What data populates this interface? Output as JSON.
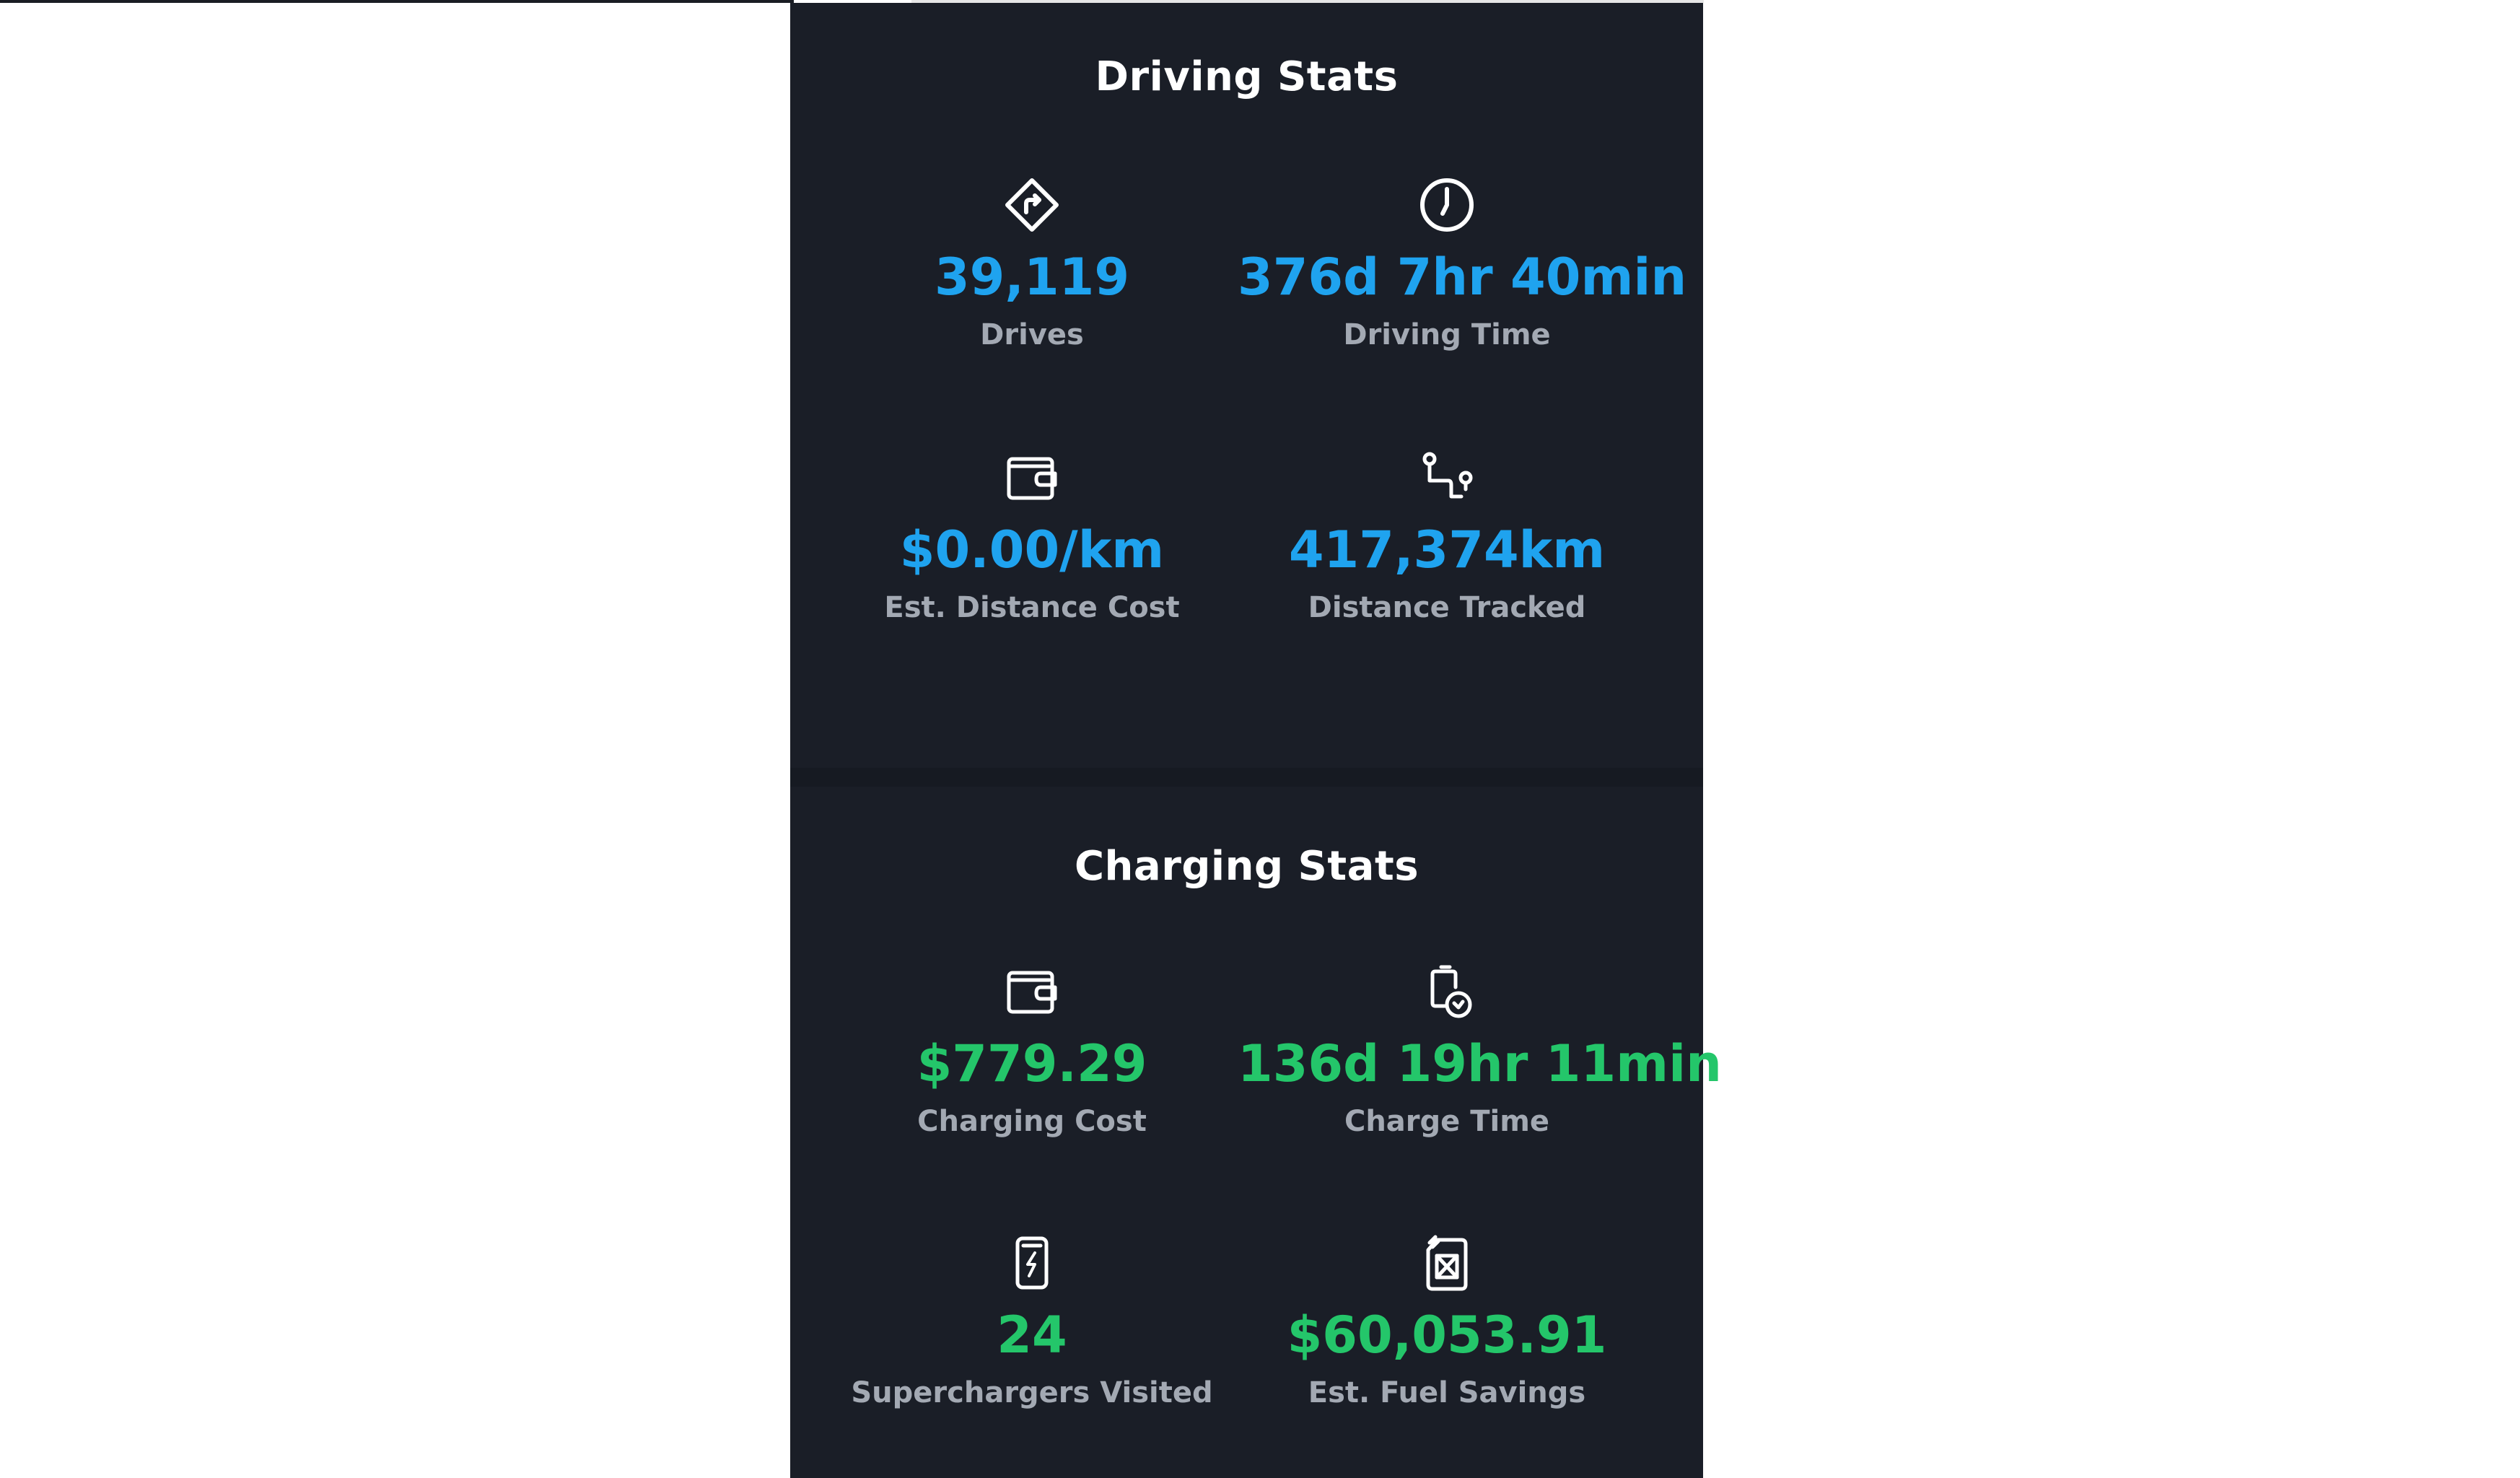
{
  "driving": {
    "title": "Driving Stats",
    "stats": [
      {
        "icon": "road-sign-turn-icon",
        "value": "39,119",
        "label": "Drives"
      },
      {
        "icon": "clock-icon",
        "value": "376d 7hr 40min",
        "label": "Driving Time"
      },
      {
        "icon": "wallet-icon",
        "value": "$0.00/km",
        "label": "Est. Distance Cost"
      },
      {
        "icon": "route-icon",
        "value": "417,374km",
        "label": "Distance Tracked"
      }
    ],
    "accent": "#1fa3ef"
  },
  "charging": {
    "title": "Charging Stats",
    "stats": [
      {
        "icon": "wallet-icon",
        "value": "$779.29",
        "label": "Charging Cost"
      },
      {
        "icon": "battery-clock-icon",
        "value": "136d 19hr 11min",
        "label": "Charge Time"
      },
      {
        "icon": "supercharger-icon",
        "value": "24",
        "label": "Superchargers Visited"
      },
      {
        "icon": "fuel-can-icon",
        "value": "$60,053.91",
        "label": "Est. Fuel Savings"
      }
    ],
    "accent": "#24c66a"
  }
}
